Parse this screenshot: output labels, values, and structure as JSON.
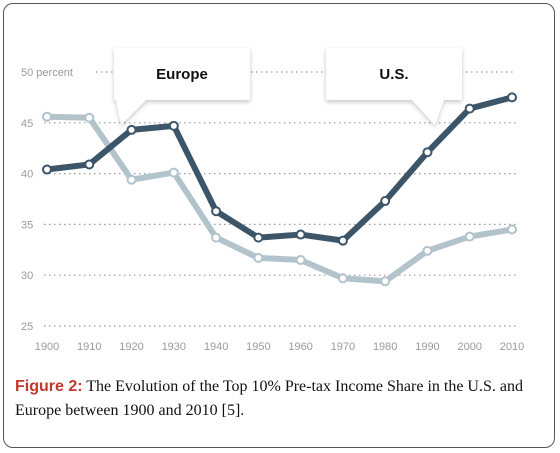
{
  "chart_data": {
    "type": "line",
    "x": [
      1900,
      1910,
      1920,
      1930,
      1940,
      1950,
      1960,
      1970,
      1980,
      1990,
      2000,
      2010
    ],
    "series": [
      {
        "name": "U.S.",
        "color": "#3d5569",
        "values": [
          40.4,
          40.9,
          44.3,
          44.7,
          36.3,
          33.7,
          34.0,
          33.4,
          37.3,
          42.1,
          46.4,
          47.5
        ]
      },
      {
        "name": "Europe",
        "color": "#b3c3cc",
        "values": [
          45.6,
          45.5,
          39.4,
          40.1,
          33.7,
          31.7,
          31.5,
          29.7,
          29.4,
          32.4,
          33.8,
          34.5
        ]
      }
    ],
    "ylim": [
      25,
      50
    ],
    "yticks": [
      25,
      30,
      35,
      40,
      45,
      50
    ],
    "ytick_labels": [
      "25",
      "30",
      "35",
      "40",
      "45",
      "50 percent"
    ],
    "xtick_labels": [
      "1900",
      "1910",
      "1920",
      "1930",
      "1940",
      "1950",
      "1960",
      "1970",
      "1980",
      "1990",
      "2000",
      "2010"
    ],
    "grid": true,
    "legend": "callouts",
    "callouts": [
      {
        "label": "Europe",
        "series": "Europe"
      },
      {
        "label": "U.S.",
        "series": "U.S."
      }
    ]
  },
  "caption": {
    "label": "Figure 2:",
    "text": " The Evolution of the Top 10% Pre-tax Income Share in the U.S. and Europe between 1900 and 2010 [5]."
  }
}
